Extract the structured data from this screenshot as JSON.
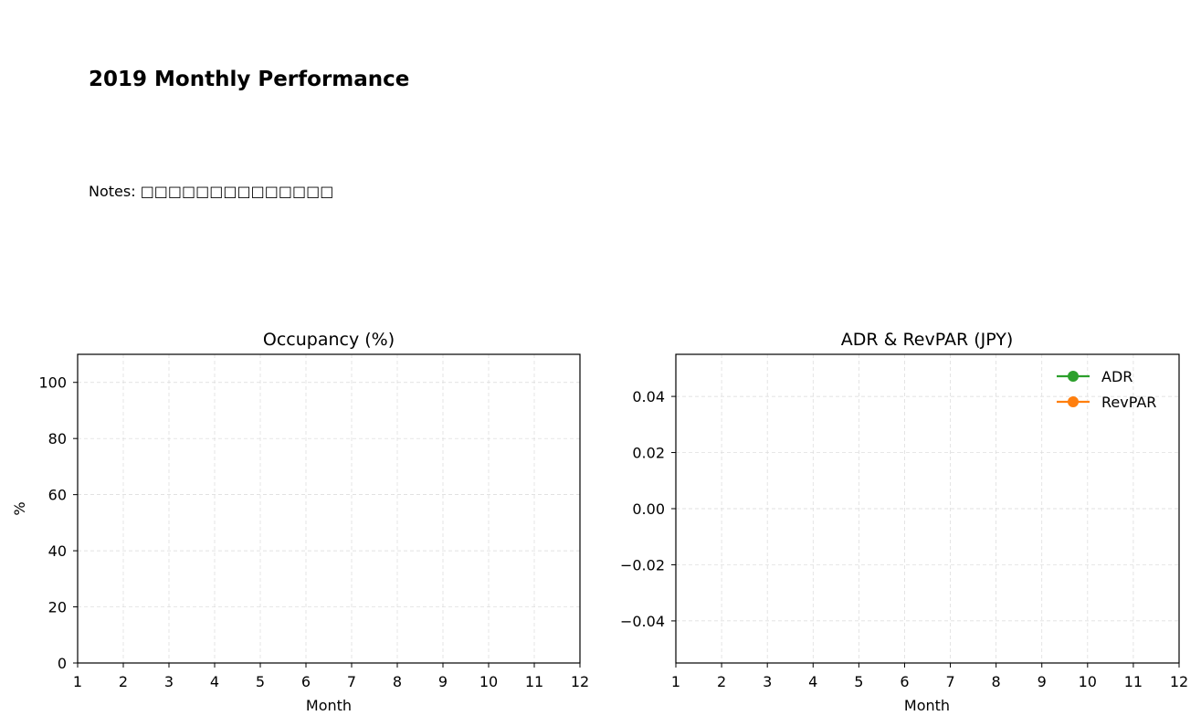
{
  "title": "2019 Monthly Performance",
  "notes": "Notes: □□□□□□□□□□□□□□",
  "chart_data": [
    {
      "type": "line",
      "title": "Occupancy (%)",
      "xlabel": "Month",
      "ylabel": "%",
      "xlim": [
        1,
        12
      ],
      "ylim": [
        0,
        110
      ],
      "xticks": [
        "1",
        "2",
        "3",
        "4",
        "5",
        "6",
        "7",
        "8",
        "9",
        "10",
        "11",
        "12"
      ],
      "yticks": [
        "0",
        "20",
        "40",
        "60",
        "80",
        "100"
      ],
      "grid": true,
      "series": []
    },
    {
      "type": "line",
      "title": "ADR & RevPAR (JPY)",
      "xlabel": "Month",
      "ylabel": "",
      "xlim": [
        1,
        12
      ],
      "ylim": [
        -0.055,
        0.055
      ],
      "xticks": [
        "1",
        "2",
        "3",
        "4",
        "5",
        "6",
        "7",
        "8",
        "9",
        "10",
        "11",
        "12"
      ],
      "yticks": [
        "−0.04",
        "−0.02",
        "0.00",
        "0.02",
        "0.04"
      ],
      "grid": true,
      "legend": "top-right",
      "series": [
        {
          "name": "ADR",
          "color": "#2ca02c",
          "values": []
        },
        {
          "name": "RevPAR",
          "color": "#ff7f0e",
          "values": []
        }
      ]
    }
  ]
}
